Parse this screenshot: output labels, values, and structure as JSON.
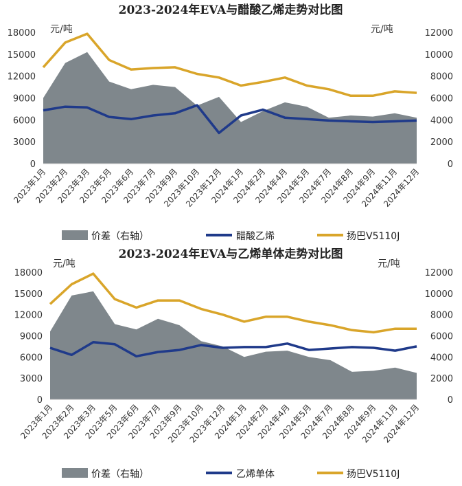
{
  "charts": [
    {
      "title": "2023-2024年EVA与醋酸乙烯走势对比图",
      "left_unit": "元/吨",
      "right_unit": "元/吨",
      "left_ticks": [
        "0",
        "3000",
        "6000",
        "9000",
        "12000",
        "15000",
        "18000"
      ],
      "right_ticks": [
        "0",
        "2000",
        "4000",
        "6000",
        "8000",
        "10000",
        "12000"
      ],
      "x_labels": [
        "2023年1月",
        "2023年2月",
        "2023年3月",
        "2023年5月",
        "2023年6月",
        "2023年7月",
        "2023年9月",
        "2023年10月",
        "2023年12月",
        "2024年1月",
        "2024年2月",
        "2024年4月",
        "2024年5月",
        "2024年7月",
        "2024年8月",
        "2024年9月",
        "2024年11月",
        "2024年12月"
      ],
      "legend": [
        "价差（右轴）",
        "醋酸乙烯",
        "扬巴V5110J"
      ]
    },
    {
      "title": "2023-2024年EVA与乙烯单体走势对比图",
      "left_unit": "元/吨",
      "right_unit": "元/吨",
      "left_ticks": [
        "0",
        "3000",
        "6000",
        "9000",
        "12000",
        "15000",
        "18000"
      ],
      "right_ticks": [
        "0",
        "2000",
        "4000",
        "6000",
        "8000",
        "10000",
        "12000"
      ],
      "x_labels": [
        "2023年1月",
        "2023年2月",
        "2023年3月",
        "2023年5月",
        "2023年6月",
        "2023年7月",
        "2023年9月",
        "2023年10月",
        "2023年12月",
        "2024年1月",
        "2024年2月",
        "2024年4月",
        "2024年5月",
        "2024年7月",
        "2024年8月",
        "2024年9月",
        "2024年11月",
        "2024年12月"
      ],
      "legend": [
        "价差（右轴）",
        "乙烯单体",
        "扬巴V5110J"
      ]
    }
  ],
  "colors": {
    "spread": "#7f878c",
    "feedstock": "#1f3a8a",
    "eva": "#d9a52a"
  },
  "chart_data": [
    {
      "type": "line",
      "title": "2023-2024年EVA与醋酸乙烯走势对比图",
      "x": [
        "2023年1月",
        "2023年2月",
        "2023年3月",
        "2023年5月",
        "2023年6月",
        "2023年7月",
        "2023年9月",
        "2023年10月",
        "2023年12月",
        "2024年1月",
        "2024年2月",
        "2024年4月",
        "2024年5月",
        "2024年7月",
        "2024年8月",
        "2024年9月",
        "2024年11月",
        "2024年12月"
      ],
      "ylim_left": [
        0,
        18000
      ],
      "ylim_right": [
        0,
        12000
      ],
      "series": [
        {
          "name": "价差（右轴）",
          "kind": "area",
          "axis": "right",
          "values": [
            6000,
            9200,
            10200,
            7500,
            6800,
            7200,
            7000,
            5300,
            6100,
            3800,
            4800,
            5600,
            5200,
            4200,
            4400,
            4300,
            4600,
            4200
          ]
        },
        {
          "name": "醋酸乙烯",
          "kind": "line",
          "axis": "left",
          "values": [
            7300,
            7800,
            7700,
            6400,
            6100,
            6600,
            6900,
            8000,
            4200,
            6600,
            7400,
            6300,
            6100,
            5900,
            5800,
            5700,
            5800,
            5900
          ]
        },
        {
          "name": "扬巴V5110J",
          "kind": "line",
          "axis": "left",
          "values": [
            13200,
            16600,
            17800,
            14200,
            12900,
            13100,
            13200,
            12300,
            11800,
            10700,
            11200,
            11800,
            10700,
            10200,
            9300,
            9300,
            9900,
            9700
          ]
        }
      ]
    },
    {
      "type": "line",
      "title": "2023-2024年EVA与乙烯单体走势对比图",
      "x": [
        "2023年1月",
        "2023年2月",
        "2023年3月",
        "2023年5月",
        "2023年6月",
        "2023年7月",
        "2023年9月",
        "2023年10月",
        "2023年12月",
        "2024年1月",
        "2024年2月",
        "2024年4月",
        "2024年5月",
        "2024年7月",
        "2024年8月",
        "2024年9月",
        "2024年11月",
        "2024年12月"
      ],
      "ylim_left": [
        0,
        18000
      ],
      "ylim_right": [
        0,
        12000
      ],
      "series": [
        {
          "name": "价差（右轴）",
          "kind": "area",
          "axis": "right",
          "values": [
            6400,
            9800,
            10200,
            7100,
            6600,
            7600,
            7000,
            5500,
            5000,
            4000,
            4500,
            4600,
            4000,
            3700,
            2600,
            2700,
            3000,
            2500
          ]
        },
        {
          "name": "乙烯单体",
          "kind": "line",
          "axis": "left",
          "values": [
            7300,
            6300,
            8100,
            7800,
            6100,
            6700,
            7000,
            7700,
            7300,
            7400,
            7400,
            7900,
            7000,
            7200,
            7400,
            7300,
            6900,
            7500
          ]
        },
        {
          "name": "扬巴V5110J",
          "kind": "line",
          "axis": "left",
          "values": [
            13500,
            16300,
            17800,
            14200,
            13000,
            14000,
            14000,
            12800,
            12000,
            11000,
            11700,
            11700,
            11000,
            10500,
            9800,
            9500,
            10000,
            10000
          ]
        }
      ]
    }
  ]
}
